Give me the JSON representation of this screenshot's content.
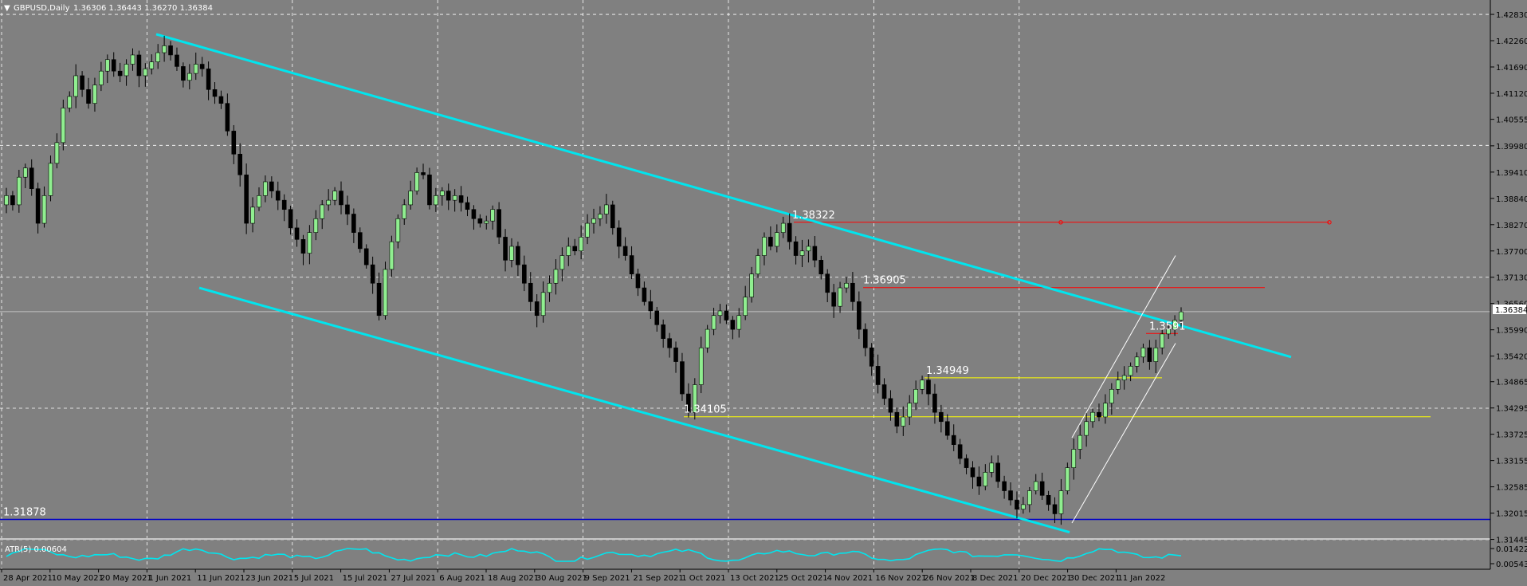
{
  "chart_data": {
    "type": "candlestick",
    "symbol_header": "GBPUSD,Daily",
    "ohlc_header": "1.36306 1.36443 1.36270 1.36384",
    "current_price": "1.36384",
    "colors": {
      "background": "#808080",
      "bull": "#90ee90",
      "bear": "#000000",
      "channel": "#00e5ee",
      "resistance": "#ff0000",
      "support": "#ffff00",
      "base_line": "#0000c8",
      "atr": "#00e5ee",
      "grid": "#ffffff"
    },
    "price_axis_ticks": [
      "1.42830",
      "1.42260",
      "1.41690",
      "1.41120",
      "1.40555",
      "1.39980",
      "1.39410",
      "1.38840",
      "1.38270",
      "1.37700",
      "1.37130",
      "1.36560",
      "1.35990",
      "1.35420",
      "1.34865",
      "1.34295",
      "1.33725",
      "1.33155",
      "1.32585",
      "1.32015",
      "1.31445"
    ],
    "ylim": [
      1.3142,
      1.429
    ],
    "atr_axis_ticks": [
      "0.01422",
      "0.00543"
    ],
    "atr_label": "ATR(5) 0.00604",
    "date_ticks": [
      "28 Apr 2021",
      "10 May 2021",
      "20 May 2021",
      "1 Jun 2021",
      "11 Jun 2021",
      "23 Jun 2021",
      "5 Jul 2021",
      "15 Jul 2021",
      "27 Jul 2021",
      "6 Aug 2021",
      "18 Aug 2021",
      "30 Aug 2021",
      "9 Sep 2021",
      "21 Sep 2021",
      "1 Oct 2021",
      "13 Oct 2021",
      "25 Oct 2021",
      "4 Nov 2021",
      "16 Nov 2021",
      "26 Nov 2021",
      "8 Dec 2021",
      "20 Dec 2021",
      "30 Dec 2021",
      "11 Jan 2022"
    ],
    "level_labels": [
      {
        "text": "1.38322",
        "price": 1.38322
      },
      {
        "text": "1.36905",
        "price": 1.36905
      },
      {
        "text": "1.34949",
        "price": 1.34949
      },
      {
        "text": "1.34105",
        "price": 1.34105
      },
      {
        "text": "1.3591",
        "price": 1.3591
      },
      {
        "text": "1.31878",
        "price": 1.31878
      }
    ],
    "closes": [
      1.389,
      1.387,
      1.393,
      1.395,
      1.3905,
      1.383,
      1.389,
      1.396,
      1.4005,
      1.408,
      1.4105,
      1.415,
      1.412,
      1.409,
      1.413,
      1.416,
      1.4185,
      1.416,
      1.415,
      1.4175,
      1.4195,
      1.415,
      1.4165,
      1.418,
      1.42,
      1.4215,
      1.4195,
      1.417,
      1.414,
      1.4155,
      1.4175,
      1.4165,
      1.412,
      1.4105,
      1.409,
      1.403,
      1.398,
      1.3935,
      1.383,
      1.3865,
      1.389,
      1.392,
      1.39,
      1.388,
      1.386,
      1.382,
      1.3795,
      1.3765,
      1.381,
      1.384,
      1.387,
      1.388,
      1.39,
      1.387,
      1.385,
      1.381,
      1.3775,
      1.374,
      1.37,
      1.363,
      1.373,
      1.379,
      1.384,
      1.387,
      1.39,
      1.394,
      1.3935,
      1.387,
      1.389,
      1.39,
      1.388,
      1.389,
      1.3875,
      1.386,
      1.384,
      1.383,
      1.3835,
      1.386,
      1.38,
      1.375,
      1.378,
      1.374,
      1.37,
      1.366,
      1.363,
      1.368,
      1.37,
      1.373,
      1.376,
      1.378,
      1.377,
      1.38,
      1.383,
      1.384,
      1.385,
      1.387,
      1.382,
      1.378,
      1.376,
      1.372,
      1.369,
      1.366,
      1.364,
      1.361,
      1.358,
      1.356,
      1.353,
      1.346,
      1.342,
      1.348,
      1.356,
      1.36,
      1.363,
      1.364,
      1.362,
      1.36,
      1.363,
      1.367,
      1.372,
      1.376,
      1.38,
      1.378,
      1.381,
      1.383,
      1.379,
      1.376,
      1.377,
      1.378,
      1.375,
      1.372,
      1.368,
      1.365,
      1.369,
      1.37,
      1.366,
      1.36,
      1.356,
      1.352,
      1.348,
      1.345,
      1.342,
      1.339,
      1.341,
      1.344,
      1.347,
      1.349,
      1.346,
      1.342,
      1.34,
      1.337,
      1.335,
      1.332,
      1.33,
      1.328,
      1.326,
      1.329,
      1.331,
      1.327,
      1.325,
      1.323,
      1.321,
      1.322,
      1.325,
      1.327,
      1.324,
      1.322,
      1.32,
      1.325,
      1.33,
      1.334,
      1.337,
      1.34,
      1.342,
      1.341,
      1.344,
      1.347,
      1.349,
      1.35,
      1.352,
      1.354,
      1.356,
      1.353,
      1.356,
      1.359,
      1.36,
      1.362,
      1.3638
    ]
  }
}
